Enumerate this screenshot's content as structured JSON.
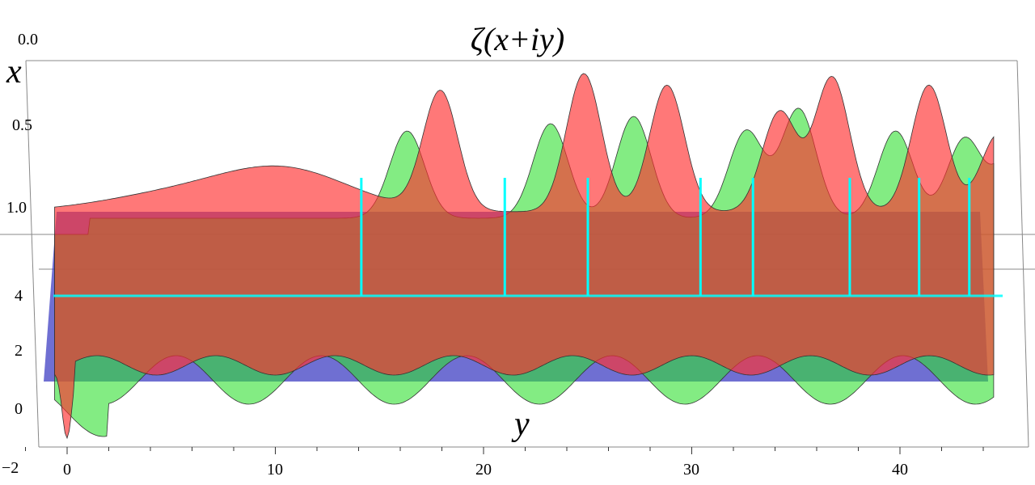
{
  "chart_data": {
    "type": "surface3d",
    "title": "ζ(x+iy)",
    "xlabel": "x",
    "ylabel": "y",
    "y_ticks": [
      "0",
      "10",
      "20",
      "30",
      "40"
    ],
    "y_tick_values": [
      0,
      10,
      20,
      30,
      40
    ],
    "x_ticks": [
      "0.0",
      "0.5",
      "1.0"
    ],
    "x_tick_values": [
      0.0,
      0.5,
      1.0
    ],
    "z_ticks": [
      "4",
      "2",
      "0",
      "−2"
    ],
    "z_tick_values": [
      4,
      2,
      0,
      -2
    ],
    "y_range": [
      -2,
      45
    ],
    "zero_markers_y": [
      14.13,
      21.02,
      25.01,
      30.42,
      32.94,
      37.59,
      40.92,
      43.33
    ],
    "series": [
      {
        "component": "real",
        "color": "#ff3030"
      },
      {
        "component": "imaginary",
        "color": "#30e030"
      },
      {
        "component": "zero plane",
        "color": "#3030c8"
      },
      {
        "component": "zero markers",
        "color": "#00ffff"
      }
    ]
  }
}
